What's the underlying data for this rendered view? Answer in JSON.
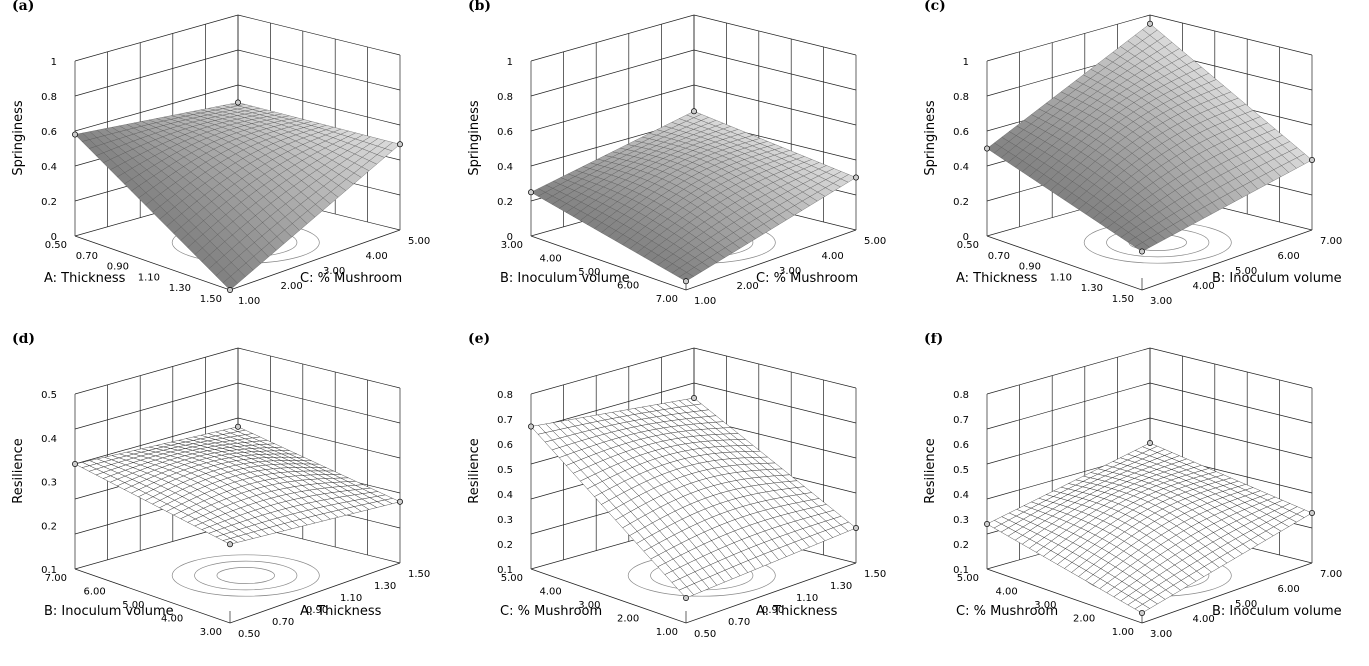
{
  "chart_data": [
    {
      "type": "surface",
      "panel_label": "(a)",
      "ylabel": "Springiness",
      "left_axis_label": "A: Thickness",
      "right_axis_label": "C: % Mushroom",
      "z_ticks": [
        "1",
        "0.8",
        "0.6",
        "0.4",
        "0.2",
        "0"
      ],
      "left_axis_ticks": [
        "0.50",
        "0.70",
        "0.90",
        "1.10",
        "1.30",
        "1.50"
      ],
      "right_axis_ticks": [
        "1.00",
        "2.00",
        "3.00",
        "4.00",
        "5.00"
      ],
      "zlim": [
        0,
        1
      ],
      "corner_values": {
        "left_near": 0.58,
        "front": 0.0,
        "right": 0.49,
        "back": 0.5
      },
      "style": "shaded"
    },
    {
      "type": "surface",
      "panel_label": "(b)",
      "ylabel": "Springiness",
      "left_axis_label": "B: Inoculum volume",
      "right_axis_label": "C: % Mushroom",
      "z_ticks": [
        "1",
        "0.8",
        "0.6",
        "0.4",
        "0.2",
        "0"
      ],
      "left_axis_ticks": [
        "3.00",
        "4.00",
        "5.00",
        "6.00",
        "7.00"
      ],
      "right_axis_ticks": [
        "1.00",
        "2.00",
        "3.00",
        "4.00",
        "5.00"
      ],
      "zlim": [
        0,
        1
      ],
      "corner_values": {
        "left_near": 0.25,
        "front": 0.05,
        "right": 0.3,
        "back": 0.45
      },
      "style": "shaded"
    },
    {
      "type": "surface",
      "panel_label": "(c)",
      "ylabel": "Springiness",
      "left_axis_label": "A: Thickness",
      "right_axis_label": "B: Inoculum volume",
      "z_ticks": [
        "1",
        "0.8",
        "0.6",
        "0.4",
        "0.2",
        "0"
      ],
      "left_axis_ticks": [
        "0.50",
        "0.70",
        "0.90",
        "1.10",
        "1.30",
        "1.50"
      ],
      "right_axis_ticks": [
        "3.00",
        "4.00",
        "5.00",
        "6.00",
        "7.00"
      ],
      "zlim": [
        0,
        1
      ],
      "corner_values": {
        "left_near": 0.5,
        "front": 0.22,
        "right": 0.4,
        "back": 0.95
      },
      "style": "shaded"
    },
    {
      "type": "surface",
      "panel_label": "(d)",
      "ylabel": "Resilience",
      "left_axis_label": "B: Inoculum volume",
      "right_axis_label": "A: Thickness",
      "z_ticks": [
        "0.5",
        "0.4",
        "0.3",
        "0.2",
        "0.1"
      ],
      "left_axis_ticks": [
        "7.00",
        "6.00",
        "5.00",
        "4.00",
        "3.00"
      ],
      "right_axis_ticks": [
        "0.50",
        "0.70",
        "0.90",
        "1.10",
        "1.30",
        "1.50"
      ],
      "zlim": [
        0.1,
        0.5
      ],
      "corner_values": {
        "left_near": 0.34,
        "front": 0.28,
        "right": 0.24,
        "back": 0.32
      },
      "style": "mesh"
    },
    {
      "type": "surface",
      "panel_label": "(e)",
      "ylabel": "Resilience",
      "left_axis_label": "C: % Mushroom",
      "right_axis_label": "A: Thickness",
      "z_ticks": [
        "0.8",
        "0.7",
        "0.6",
        "0.5",
        "0.4",
        "0.3",
        "0.2",
        "0.1"
      ],
      "left_axis_ticks": [
        "5.00",
        "4.00",
        "3.00",
        "2.00",
        "1.00"
      ],
      "right_axis_ticks": [
        "0.50",
        "0.70",
        "0.90",
        "1.10",
        "1.30",
        "1.50"
      ],
      "zlim": [
        0.1,
        0.8
      ],
      "corner_values": {
        "left_near": 0.67,
        "front": 0.2,
        "right": 0.24,
        "back": 0.6
      },
      "style": "mesh"
    },
    {
      "type": "surface",
      "panel_label": "(f)",
      "ylabel": "Resilience",
      "left_axis_label": "C: % Mushroom",
      "right_axis_label": "B: Inoculum volume",
      "z_ticks": [
        "0.8",
        "0.7",
        "0.6",
        "0.5",
        "0.4",
        "0.3",
        "0.2",
        "0.1"
      ],
      "left_axis_ticks": [
        "5.00",
        "4.00",
        "3.00",
        "2.00",
        "1.00"
      ],
      "right_axis_ticks": [
        "3.00",
        "4.00",
        "5.00",
        "6.00",
        "7.00"
      ],
      "zlim": [
        0.1,
        0.8
      ],
      "corner_values": {
        "left_near": 0.28,
        "front": 0.14,
        "right": 0.3,
        "back": 0.42
      },
      "style": "mesh"
    }
  ]
}
